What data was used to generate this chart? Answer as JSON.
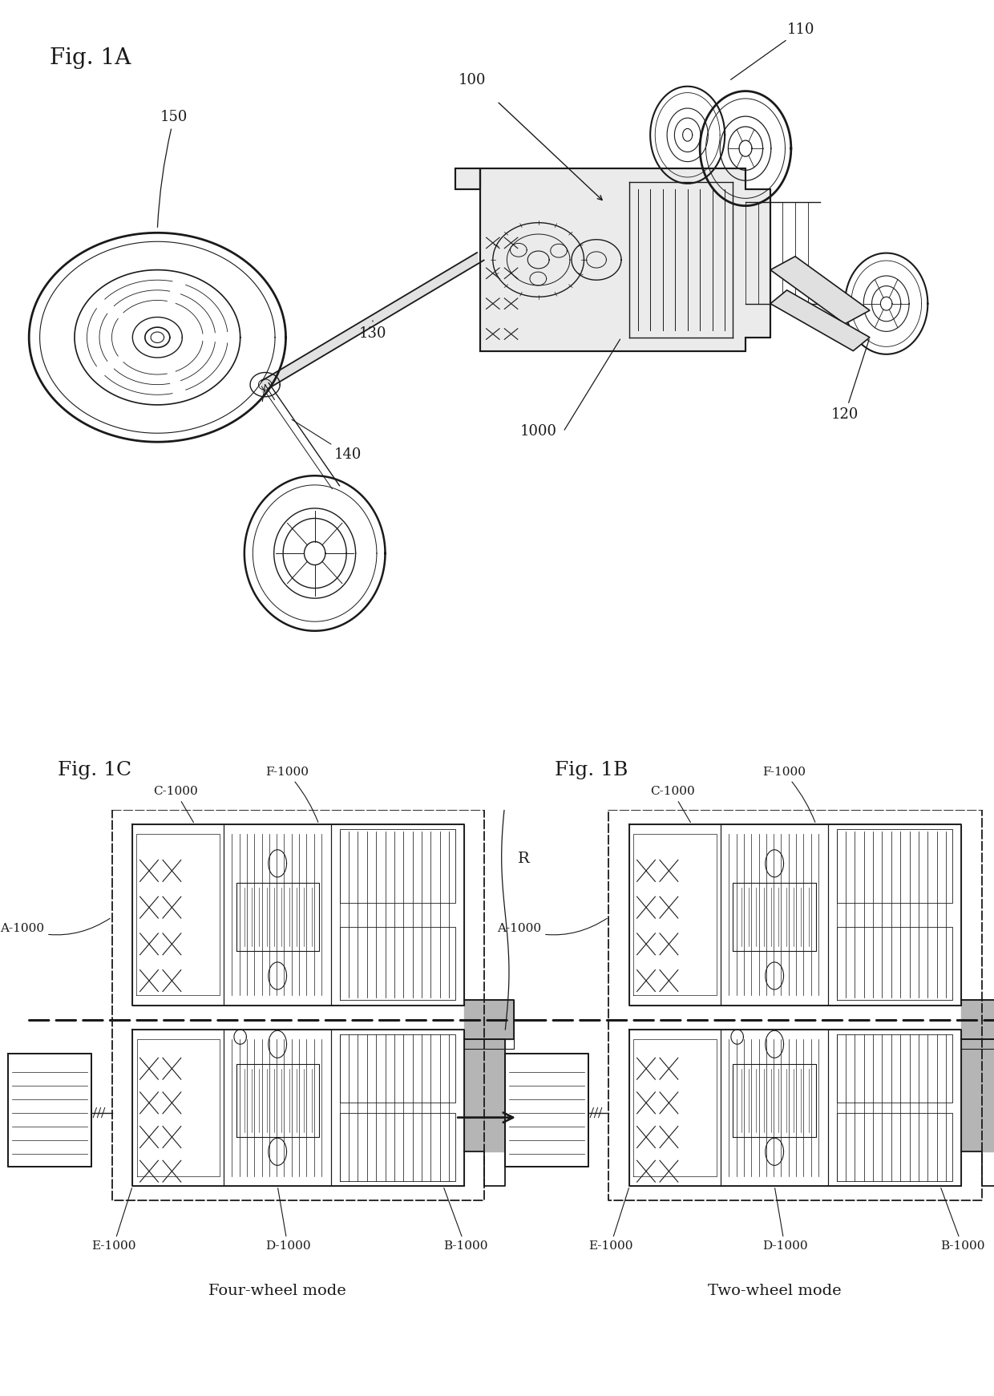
{
  "fig_title_1A": "Fig. 1A",
  "fig_title_1B": "Fig. 1B",
  "fig_title_1C": "Fig. 1C",
  "label_100": "100",
  "label_110": "110",
  "label_120": "120",
  "label_130": "130",
  "label_140": "140",
  "label_150": "150",
  "label_1000": "1000",
  "label_A1000": "A-1000",
  "label_B1000": "B-1000",
  "label_C1000": "C-1000",
  "label_D1000": "D-1000",
  "label_E1000": "E-1000",
  "label_F1000": "F-1000",
  "label_R": "R",
  "caption_1C": "Four-wheel mode",
  "caption_1B": "Two-wheel mode",
  "bg_color": "#ffffff",
  "line_color": "#1a1a1a",
  "gray_fill": "#c8c8c8",
  "mid_gray": "#a0a0a0",
  "dark_gray": "#555555"
}
